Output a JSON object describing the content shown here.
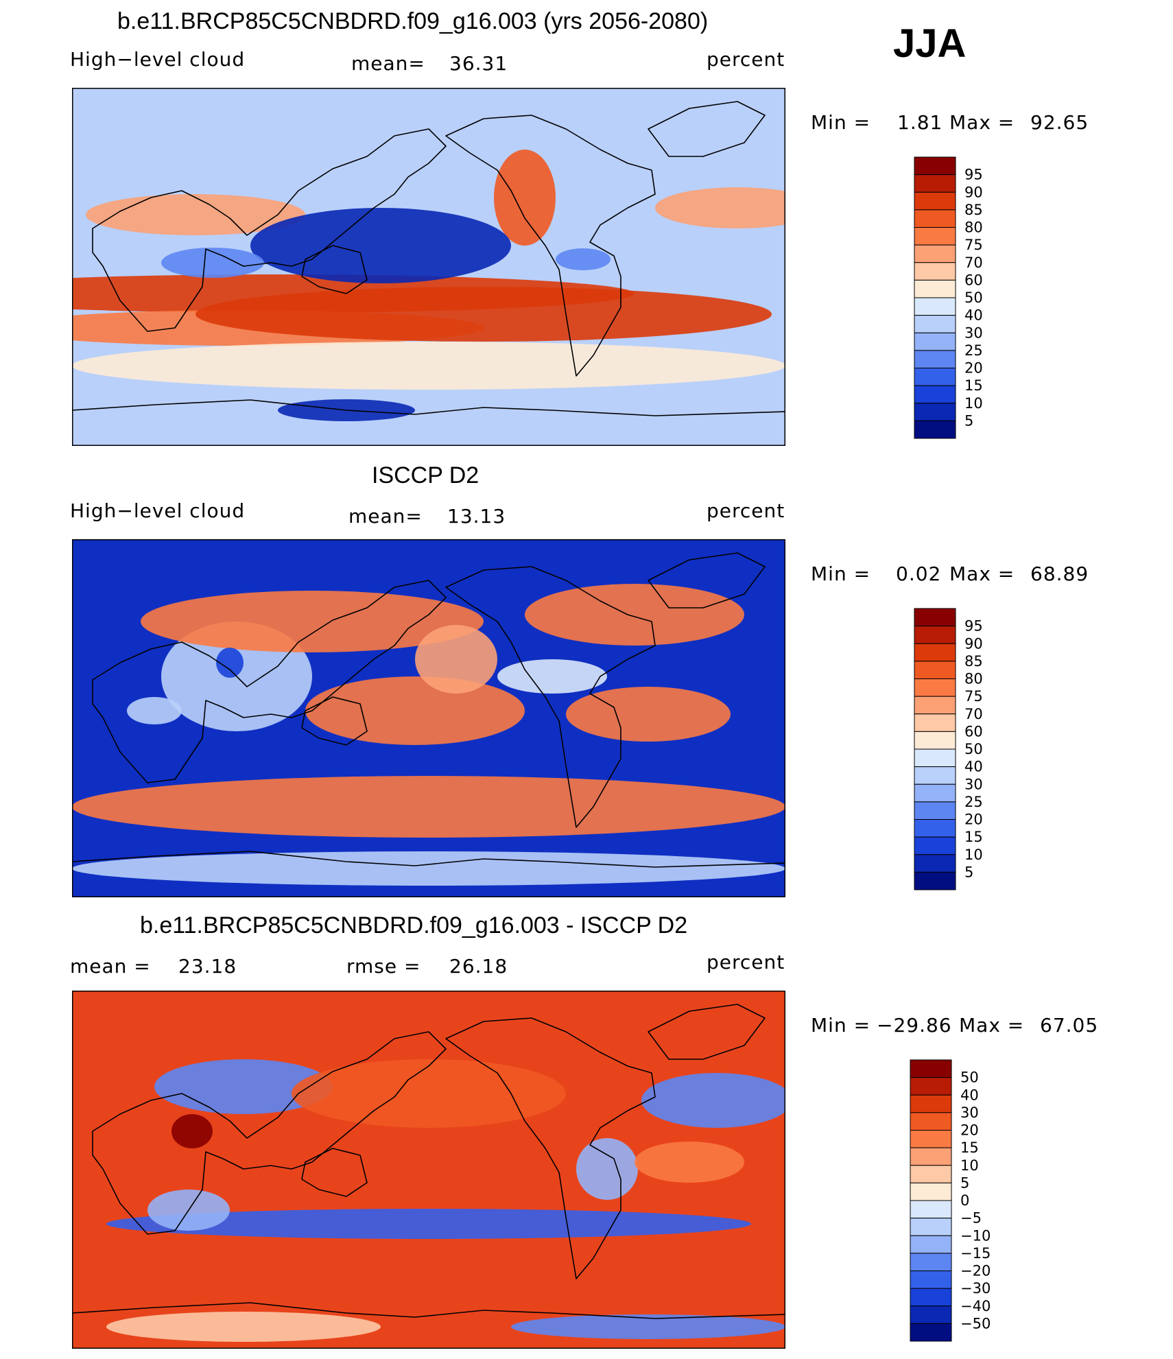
{
  "season": "JJA",
  "panels": [
    {
      "id": "model",
      "title": "b.e11.BRCP85C5CNBDRD.f09_g16.003 (yrs 2056-2080)",
      "left_label": "High−level cloud",
      "stat1_label": "mean=",
      "stat1_value": "36.31",
      "stat2_label": "",
      "stat2_value": "",
      "units": "percent",
      "min_label": "Min =",
      "min_value": "1.81",
      "max_label": "Max =",
      "max_value": "92.65",
      "base_color": "#b9d0fa",
      "color_key": "abs"
    },
    {
      "id": "obs",
      "title": "ISCCP D2",
      "left_label": "High−level cloud",
      "stat1_label": "mean=",
      "stat1_value": "13.13",
      "stat2_label": "",
      "stat2_value": "",
      "units": "percent",
      "min_label": "Min =",
      "min_value": "0.02",
      "max_label": "Max =",
      "max_value": "68.89",
      "base_color": "#0f2fc2",
      "color_key": "abs"
    },
    {
      "id": "diff",
      "title": "b.e11.BRCP85C5CNBDRD.f09_g16.003 - ISCCP D2",
      "left_label": "",
      "stat1_label": "mean =",
      "stat1_value": "23.18",
      "stat2_label": "rmse =",
      "stat2_value": "26.18",
      "units": "percent",
      "min_label": "Min =",
      "min_value": "−29.86",
      "max_label": "Max =",
      "max_value": "67.05",
      "base_color": "#e8441c",
      "color_key": "diff"
    }
  ],
  "colorbars": {
    "abs": {
      "labels": [
        "95",
        "90",
        "85",
        "80",
        "75",
        "70",
        "60",
        "50",
        "40",
        "30",
        "25",
        "20",
        "15",
        "10",
        "5"
      ],
      "colors": [
        "#880000",
        "#b81c04",
        "#dc3a0a",
        "#ef5922",
        "#fa7a44",
        "#fca176",
        "#fdc9a6",
        "#fdebd6",
        "#d9e8fb",
        "#b9d0fa",
        "#93b2f7",
        "#5d86f2",
        "#3461ea",
        "#1842d9",
        "#0a28b4",
        "#010e82"
      ]
    },
    "diff": {
      "labels": [
        "50",
        "40",
        "30",
        "20",
        "15",
        "10",
        "5",
        "0",
        "−5",
        "−10",
        "−15",
        "−20",
        "−30",
        "−40",
        "−50"
      ],
      "colors": [
        "#880000",
        "#b81c04",
        "#dc3a0a",
        "#ef5922",
        "#fa7a44",
        "#fca176",
        "#fdc9a6",
        "#fdebd6",
        "#d9e8fb",
        "#b9d0fa",
        "#93b2f7",
        "#5d86f2",
        "#3461ea",
        "#1842d9",
        "#0a28b4",
        "#010e82"
      ]
    }
  }
}
